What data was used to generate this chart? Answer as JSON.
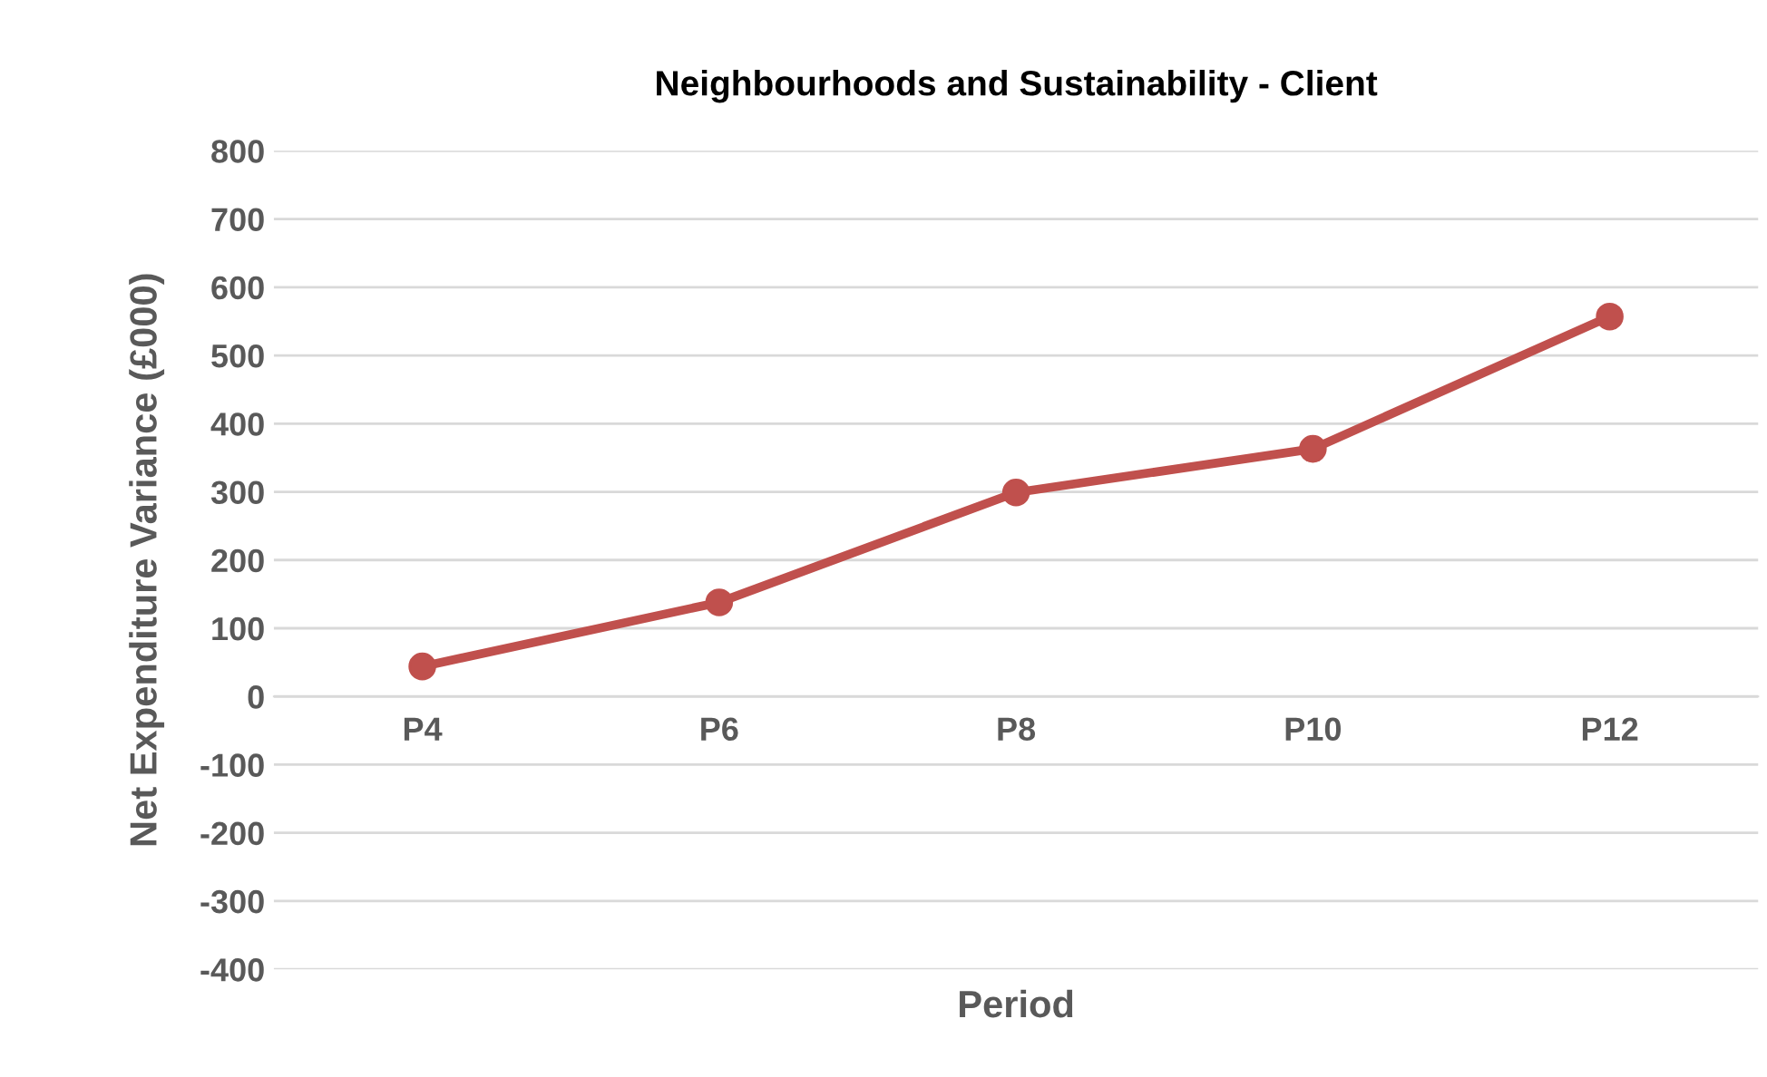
{
  "chart_data": {
    "type": "line",
    "title": "Neighbourhoods and Sustainability - Client",
    "xlabel": "Period",
    "ylabel": "Net Expenditure Variance (£000)",
    "categories": [
      "P4",
      "P6",
      "P8",
      "P10",
      "P12"
    ],
    "series": [
      {
        "color": "#c0504d",
        "values": [
          44,
          138,
          299,
          363,
          557
        ]
      }
    ],
    "ylim": [
      -400,
      800
    ],
    "yticks": [
      -400,
      -300,
      -200,
      -100,
      0,
      100,
      200,
      300,
      400,
      500,
      600,
      700,
      800
    ],
    "grid": "y",
    "marker": "circle",
    "line_style": "solid"
  }
}
